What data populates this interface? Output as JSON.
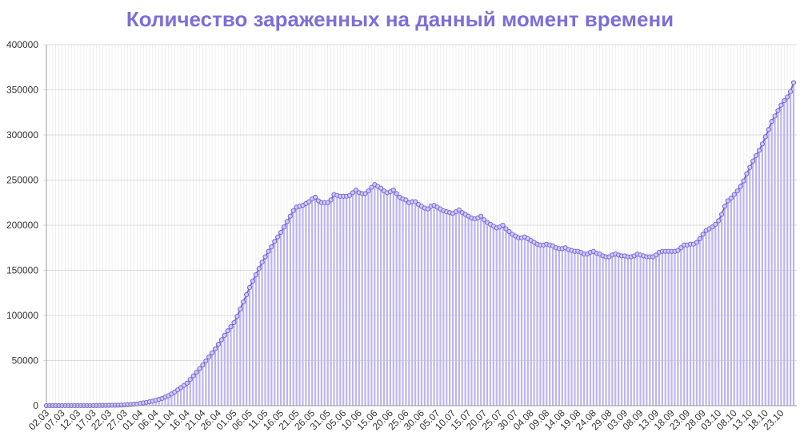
{
  "chart_data": {
    "type": "line",
    "title": "Количество зараженных на данный момент времени",
    "color": "#7b68d8",
    "fill": "#bdb4f0",
    "grid": true,
    "ylim": [
      0,
      400000
    ],
    "yticks": [
      0,
      50000,
      100000,
      150000,
      200000,
      250000,
      300000,
      350000,
      400000
    ],
    "categories": [
      "02.03",
      null,
      null,
      null,
      null,
      "07.03",
      null,
      null,
      null,
      null,
      "12.03",
      null,
      null,
      null,
      null,
      "17.03",
      null,
      null,
      null,
      null,
      "22.03",
      null,
      null,
      null,
      null,
      "27.03",
      null,
      null,
      null,
      null,
      "01.04",
      null,
      null,
      null,
      null,
      "06.04",
      null,
      null,
      null,
      null,
      "11.04",
      null,
      null,
      null,
      null,
      "16.04",
      null,
      null,
      null,
      null,
      "21.04",
      null,
      null,
      null,
      null,
      "26.04",
      null,
      null,
      null,
      null,
      "01.05",
      null,
      null,
      null,
      null,
      "06.05",
      null,
      null,
      null,
      null,
      "11.05",
      null,
      null,
      null,
      null,
      "16.05",
      null,
      null,
      null,
      null,
      "21.05",
      null,
      null,
      null,
      null,
      "26.05",
      null,
      null,
      null,
      null,
      "31.05",
      null,
      null,
      null,
      null,
      "05.06",
      null,
      null,
      null,
      null,
      "10.06",
      null,
      null,
      null,
      null,
      "15.06",
      null,
      null,
      null,
      null,
      "20.06",
      null,
      null,
      null,
      null,
      "25.06",
      null,
      null,
      null,
      null,
      "30.06",
      null,
      null,
      null,
      null,
      "05.07",
      null,
      null,
      null,
      null,
      "10.07",
      null,
      null,
      null,
      null,
      "15.07",
      null,
      null,
      null,
      null,
      "20.07",
      null,
      null,
      null,
      null,
      "25.07",
      null,
      null,
      null,
      null,
      "30.07",
      null,
      null,
      null,
      null,
      "04.08",
      null,
      null,
      null,
      null,
      "09.08",
      null,
      null,
      null,
      null,
      "14.08",
      null,
      null,
      null,
      null,
      "19.08",
      null,
      null,
      null,
      null,
      "24.08",
      null,
      null,
      null,
      null,
      "29.08",
      null,
      null,
      null,
      null,
      "03.09",
      null,
      null,
      null,
      null,
      "08.09",
      null,
      null,
      null,
      null,
      "13.09",
      null,
      null,
      null,
      null,
      "18.09",
      null,
      null,
      null,
      null,
      "23.09",
      null,
      null,
      null,
      null,
      "28.09",
      null,
      null,
      null,
      null,
      "03.10",
      null,
      null,
      null,
      null,
      "08.10",
      null,
      null,
      null,
      null,
      "13.10",
      null,
      null,
      null,
      null,
      "18.10",
      null,
      null,
      null,
      null,
      "23.10",
      null,
      null,
      null,
      null
    ],
    "values": [
      3,
      3,
      3,
      4,
      4,
      7,
      10,
      13,
      17,
      20,
      28,
      34,
      45,
      59,
      63,
      90,
      114,
      147,
      199,
      253,
      306,
      367,
      438,
      495,
      658,
      840,
      1036,
      1264,
      1534,
      1836,
      2500,
      3100,
      3600,
      4300,
      5000,
      6000,
      7000,
      8000,
      9500,
      11000,
      13000,
      15000,
      17500,
      20000,
      22500,
      25000,
      29000,
      33000,
      37000,
      41000,
      45000,
      49500,
      54000,
      58500,
      63000,
      68000,
      73000,
      78000,
      83000,
      87500,
      92000,
      99000,
      107000,
      115000,
      123000,
      131000,
      138000,
      145000,
      152000,
      159000,
      165000,
      171000,
      176000,
      182000,
      187000,
      192000,
      198000,
      204000,
      210000,
      216000,
      220000,
      221000,
      222000,
      224000,
      226000,
      229000,
      231000,
      227000,
      225000,
      225000,
      225000,
      228000,
      234000,
      233000,
      232000,
      232000,
      232000,
      233000,
      236000,
      239000,
      236000,
      235000,
      235000,
      238000,
      242000,
      245000,
      243000,
      241000,
      238000,
      236000,
      237000,
      239000,
      235000,
      231000,
      229000,
      228000,
      225000,
      226000,
      226000,
      223000,
      221000,
      219000,
      218000,
      221000,
      222000,
      220000,
      218000,
      216000,
      215000,
      214000,
      213000,
      215000,
      217000,
      214000,
      212000,
      210000,
      208000,
      207000,
      208000,
      210000,
      206000,
      203000,
      201000,
      199000,
      197000,
      198000,
      200000,
      196000,
      193000,
      190000,
      188000,
      186000,
      186000,
      187000,
      185000,
      183000,
      181000,
      179000,
      178000,
      178000,
      179000,
      178000,
      177000,
      175000,
      174000,
      174000,
      175000,
      173000,
      172000,
      171000,
      171000,
      170000,
      168000,
      168000,
      170000,
      171000,
      169000,
      168000,
      166000,
      165000,
      165000,
      167000,
      168000,
      167000,
      166000,
      166000,
      165000,
      165000,
      166000,
      168000,
      167000,
      166000,
      165000,
      165000,
      165000,
      167000,
      170000,
      171000,
      171000,
      171000,
      171000,
      171000,
      172000,
      175000,
      178000,
      178000,
      179000,
      179000,
      181000,
      185000,
      190000,
      194000,
      196000,
      198000,
      201000,
      205000,
      212000,
      221000,
      227000,
      230000,
      234000,
      238000,
      243000,
      249000,
      257000,
      264000,
      271000,
      277000,
      283000,
      290000,
      298000,
      306000,
      315000,
      321000,
      327000,
      333000,
      338000,
      342000,
      348000,
      358000
    ]
  }
}
